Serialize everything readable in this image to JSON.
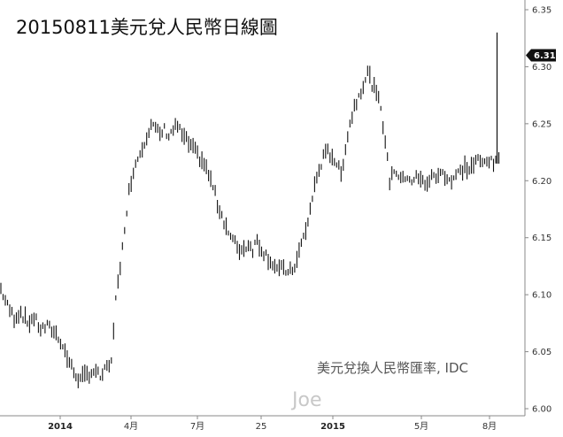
{
  "chart_data": {
    "type": "bar",
    "subtype": "daily high-low price bars",
    "title": "20150811美元兌人民幣日線圖",
    "source": "美元兌換人民幣匯率, IDC",
    "watermark": "Joe",
    "ylim": [
      6.0,
      6.35
    ],
    "y_ticks": [
      "6.35",
      "6.30",
      "6.25",
      "6.20",
      "6.15",
      "6.10",
      "6.05",
      "6.00"
    ],
    "x_ticks": [
      {
        "label": "2014",
        "bold": true
      },
      {
        "label": "4月",
        "bold": false
      },
      {
        "label": "7月",
        "bold": false
      },
      {
        "label": "25",
        "bold": false
      },
      {
        "label": "2015",
        "bold": true
      },
      {
        "label": "5月",
        "bold": false
      },
      {
        "label": "8月",
        "bold": false
      }
    ],
    "last_value": "6.31",
    "grid": false,
    "anchors": [
      [
        0,
        6.105
      ],
      [
        3,
        6.09
      ],
      [
        6,
        6.08
      ],
      [
        9,
        6.085
      ],
      [
        12,
        6.075
      ],
      [
        15,
        6.08
      ],
      [
        18,
        6.07
      ],
      [
        21,
        6.072
      ],
      [
        24,
        6.068
      ],
      [
        27,
        6.06
      ],
      [
        30,
        6.045
      ],
      [
        33,
        6.032
      ],
      [
        36,
        6.025
      ],
      [
        39,
        6.03
      ],
      [
        42,
        6.033
      ],
      [
        45,
        6.028
      ],
      [
        48,
        6.035
      ],
      [
        50,
        6.04
      ],
      [
        52,
        6.1
      ],
      [
        54,
        6.12
      ],
      [
        56,
        6.16
      ],
      [
        58,
        6.19
      ],
      [
        60,
        6.21
      ],
      [
        62,
        6.22
      ],
      [
        64,
        6.23
      ],
      [
        66,
        6.24
      ],
      [
        68,
        6.25
      ],
      [
        70,
        6.245
      ],
      [
        72,
        6.24
      ],
      [
        74,
        6.245
      ],
      [
        76,
        6.24
      ],
      [
        78,
        6.245
      ],
      [
        80,
        6.248
      ],
      [
        82,
        6.24
      ],
      [
        84,
        6.235
      ],
      [
        86,
        6.23
      ],
      [
        88,
        6.225
      ],
      [
        90,
        6.22
      ],
      [
        92,
        6.215
      ],
      [
        94,
        6.205
      ],
      [
        96,
        6.195
      ],
      [
        98,
        6.18
      ],
      [
        100,
        6.17
      ],
      [
        102,
        6.16
      ],
      [
        104,
        6.15
      ],
      [
        106,
        6.145
      ],
      [
        108,
        6.14
      ],
      [
        110,
        6.14
      ],
      [
        112,
        6.145
      ],
      [
        114,
        6.14
      ],
      [
        116,
        6.148
      ],
      [
        118,
        6.14
      ],
      [
        120,
        6.135
      ],
      [
        122,
        6.13
      ],
      [
        124,
        6.125
      ],
      [
        126,
        6.12
      ],
      [
        128,
        6.125
      ],
      [
        130,
        6.118
      ],
      [
        132,
        6.122
      ],
      [
        134,
        6.13
      ],
      [
        136,
        6.145
      ],
      [
        138,
        6.155
      ],
      [
        140,
        6.175
      ],
      [
        142,
        6.195
      ],
      [
        144,
        6.21
      ],
      [
        146,
        6.22
      ],
      [
        148,
        6.225
      ],
      [
        150,
        6.222
      ],
      [
        152,
        6.215
      ],
      [
        154,
        6.205
      ],
      [
        156,
        6.23
      ],
      [
        158,
        6.25
      ],
      [
        160,
        6.265
      ],
      [
        162,
        6.275
      ],
      [
        164,
        6.285
      ],
      [
        166,
        6.295
      ],
      [
        168,
        6.285
      ],
      [
        170,
        6.275
      ],
      [
        172,
        6.265
      ],
      [
        174,
        6.235
      ],
      [
        176,
        6.2
      ],
      [
        178,
        6.21
      ],
      [
        180,
        6.205
      ],
      [
        182,
        6.2
      ],
      [
        184,
        6.205
      ],
      [
        186,
        6.2
      ],
      [
        188,
        6.203
      ],
      [
        190,
        6.2
      ],
      [
        192,
        6.198
      ],
      [
        194,
        6.2
      ],
      [
        196,
        6.205
      ],
      [
        198,
        6.203
      ],
      [
        200,
        6.208
      ],
      [
        202,
        6.203
      ],
      [
        204,
        6.2
      ],
      [
        206,
        6.205
      ],
      [
        208,
        6.208
      ],
      [
        210,
        6.212
      ],
      [
        212,
        6.21
      ],
      [
        214,
        6.214
      ],
      [
        216,
        6.218
      ],
      [
        218,
        6.215
      ],
      [
        220,
        6.22
      ],
      [
        222,
        6.216
      ],
      [
        224,
        6.215
      ]
    ],
    "final_bars": [
      {
        "low": 6.215,
        "high": 6.33
      },
      {
        "low": 6.215,
        "high": 6.225
      }
    ]
  }
}
